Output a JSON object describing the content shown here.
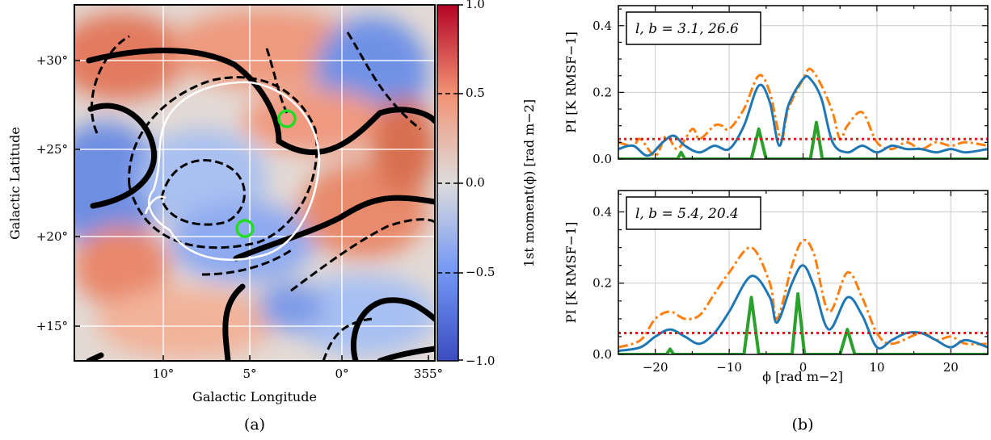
{
  "panel_a": {
    "caption": "(a)",
    "xlabel": "Galactic Longitude",
    "ylabel": "Galactic Latitude",
    "xticks": [
      "10°",
      "5°",
      "0°",
      "355°"
    ],
    "yticks": [
      "+30°",
      "+25°",
      "+20°",
      "+15°"
    ],
    "colorbar": {
      "label": "1st moment(ϕ) [rad m−2]",
      "ticks": [
        "1.0",
        "0.5",
        "0.0",
        "−0.5",
        "−1.0"
      ],
      "range": [
        -1.0,
        1.0
      ],
      "cmap_low": "#3b4cc0",
      "cmap_mid": "#dddddd",
      "cmap_high": "#b40426"
    },
    "markers": [
      {
        "name": "marker-1",
        "color": "#22dd22"
      },
      {
        "name": "marker-2",
        "color": "#22dd22"
      }
    ]
  },
  "panel_b": {
    "caption": "(b)",
    "xlabel": "ϕ [rad m−2]",
    "xticks": [
      "−20",
      "−10",
      "0",
      "10",
      "20"
    ]
  },
  "chart_data": [
    {
      "type": "line",
      "panel": "top",
      "legend": "l, b = 3.1, 26.6",
      "ylabel": "PI [K RMSF−1]",
      "xlim": [
        -25,
        25
      ],
      "ylim": [
        0,
        0.46
      ],
      "yticks": [
        "0.0",
        "0.2",
        "0.4"
      ],
      "threshold": 0.06,
      "series": [
        {
          "color": "#ff7f0e",
          "style": "dashdot",
          "x": [
            -25,
            -23,
            -22,
            -20,
            -18.5,
            -17,
            -15,
            -14,
            -12,
            -11,
            -10,
            -8,
            -6,
            -4.5,
            -3,
            -2,
            0,
            1,
            2.5,
            4,
            5,
            6,
            8,
            10,
            12,
            14,
            16,
            18,
            20,
            22,
            25
          ],
          "y": [
            0.05,
            0.04,
            0.06,
            0.01,
            0.07,
            0.03,
            0.09,
            0.06,
            0.1,
            0.1,
            0.09,
            0.15,
            0.25,
            0.2,
            0.06,
            0.15,
            0.24,
            0.27,
            0.22,
            0.14,
            0.06,
            0.1,
            0.14,
            0.05,
            0.03,
            0.05,
            0.03,
            0.05,
            0.04,
            0.05,
            0.04
          ]
        },
        {
          "color": "#1f77b4",
          "style": "solid",
          "x": [
            -25,
            -23,
            -21,
            -19,
            -17.5,
            -16,
            -14,
            -12,
            -10,
            -8,
            -6,
            -4.5,
            -3.2,
            -2,
            0,
            1,
            2.5,
            4,
            6,
            8,
            10,
            12,
            14,
            16,
            18,
            20,
            22,
            25
          ],
          "y": [
            0.03,
            0.04,
            0.01,
            0.05,
            0.07,
            0.04,
            0.02,
            0.04,
            0.03,
            0.1,
            0.22,
            0.17,
            0.04,
            0.16,
            0.24,
            0.24,
            0.18,
            0.05,
            0.02,
            0.04,
            0.02,
            0.04,
            0.03,
            0.03,
            0.02,
            0.03,
            0.02,
            0.03
          ]
        },
        {
          "color": "#2ca02c",
          "style": "solid",
          "x": [
            -25,
            -17,
            -16.5,
            -16,
            -7,
            -6,
            -5,
            1,
            1.8,
            2.6,
            25
          ],
          "y": [
            0,
            0,
            0.02,
            0,
            0,
            0.09,
            0,
            0,
            0.11,
            0,
            0
          ]
        }
      ]
    },
    {
      "type": "line",
      "panel": "bottom",
      "legend": "l, b = 5.4, 20.4",
      "ylabel": "PI [K RMSF−1]",
      "xlim": [
        -25,
        25
      ],
      "ylim": [
        0,
        0.46
      ],
      "yticks": [
        "0.0",
        "0.2",
        "0.4"
      ],
      "threshold": 0.06,
      "series": [
        {
          "color": "#ff7f0e",
          "style": "dashdot",
          "x": [
            -25,
            -22,
            -20,
            -18,
            -16,
            -14,
            -12,
            -10,
            -7,
            -4.5,
            -3.5,
            -1.5,
            0,
            1.5,
            3.5,
            6,
            8,
            10,
            12,
            16,
            18,
            20,
            22,
            25
          ],
          "y": [
            0.02,
            0.04,
            0.1,
            0.12,
            0.1,
            0.11,
            0.17,
            0.23,
            0.3,
            0.2,
            0.1,
            0.25,
            0.32,
            0.28,
            0.12,
            0.23,
            0.16,
            0.06,
            0.03,
            0.06,
            0.04,
            0.05,
            0.03,
            0.03
          ]
        },
        {
          "color": "#1f77b4",
          "style": "solid",
          "x": [
            -25,
            -22,
            -20,
            -18,
            -16,
            -14,
            -12,
            -10,
            -7,
            -4.5,
            -3.5,
            -1.5,
            0,
            1.5,
            3.5,
            6,
            8,
            10,
            12,
            14,
            16,
            18,
            20,
            22,
            25
          ],
          "y": [
            0.01,
            0.02,
            0.05,
            0.07,
            0.05,
            0.03,
            0.06,
            0.12,
            0.22,
            0.16,
            0.09,
            0.2,
            0.25,
            0.19,
            0.07,
            0.16,
            0.11,
            0.02,
            0.04,
            0.06,
            0.06,
            0.04,
            0.02,
            0.04,
            0.02
          ]
        },
        {
          "color": "#2ca02c",
          "style": "solid",
          "x": [
            -25,
            -18.5,
            -18,
            -17.5,
            -8,
            -7,
            -6,
            -1.5,
            -0.7,
            0.2,
            5,
            6,
            7,
            25
          ],
          "y": [
            0,
            0,
            0.015,
            0,
            0,
            0.16,
            0,
            0,
            0.17,
            0,
            0,
            0.07,
            0,
            0
          ]
        }
      ]
    }
  ]
}
